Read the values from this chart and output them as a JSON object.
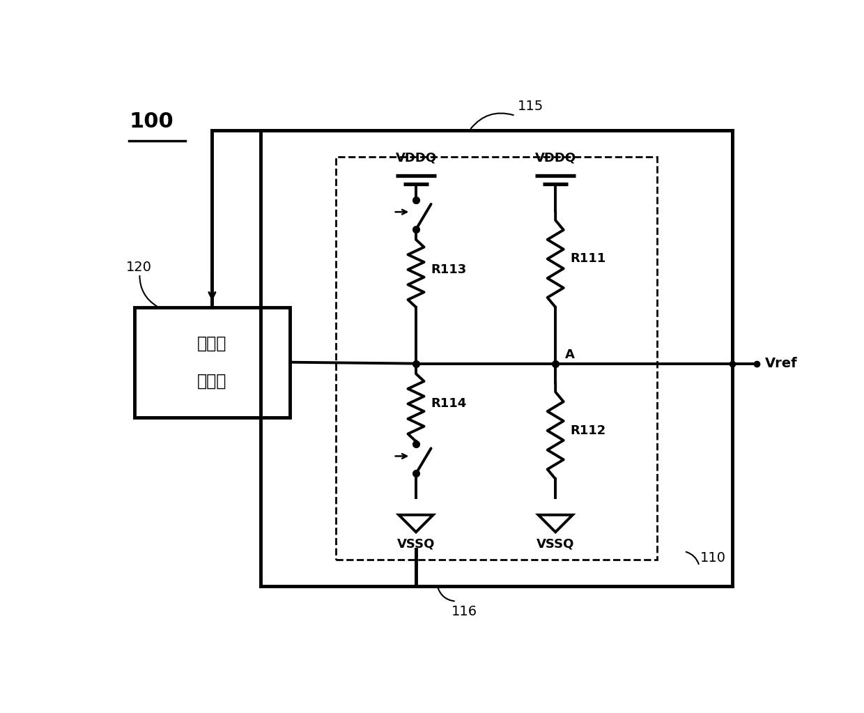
{
  "bg_color": "#ffffff",
  "lw": 2.8,
  "tlw": 3.5,
  "fig_w": 12.4,
  "fig_h": 10.23,
  "label_100": "100",
  "label_115": "115",
  "label_116": "116",
  "label_120": "120",
  "label_110": "110",
  "label_noise_line1": "噪声检",
  "label_noise_line2": "测电路",
  "label_vddq1": "VDDQ",
  "label_vddq2": "VDDQ",
  "label_vssq1": "VSSQ",
  "label_vssq2": "VSSQ",
  "label_r111": "R111",
  "label_r112": "R112",
  "label_r113": "R113",
  "label_r114": "R114",
  "label_a": "A",
  "label_vref": "Vref",
  "XL": 0.3,
  "XR": 11.9,
  "YB": 0.3,
  "YT": 9.9
}
